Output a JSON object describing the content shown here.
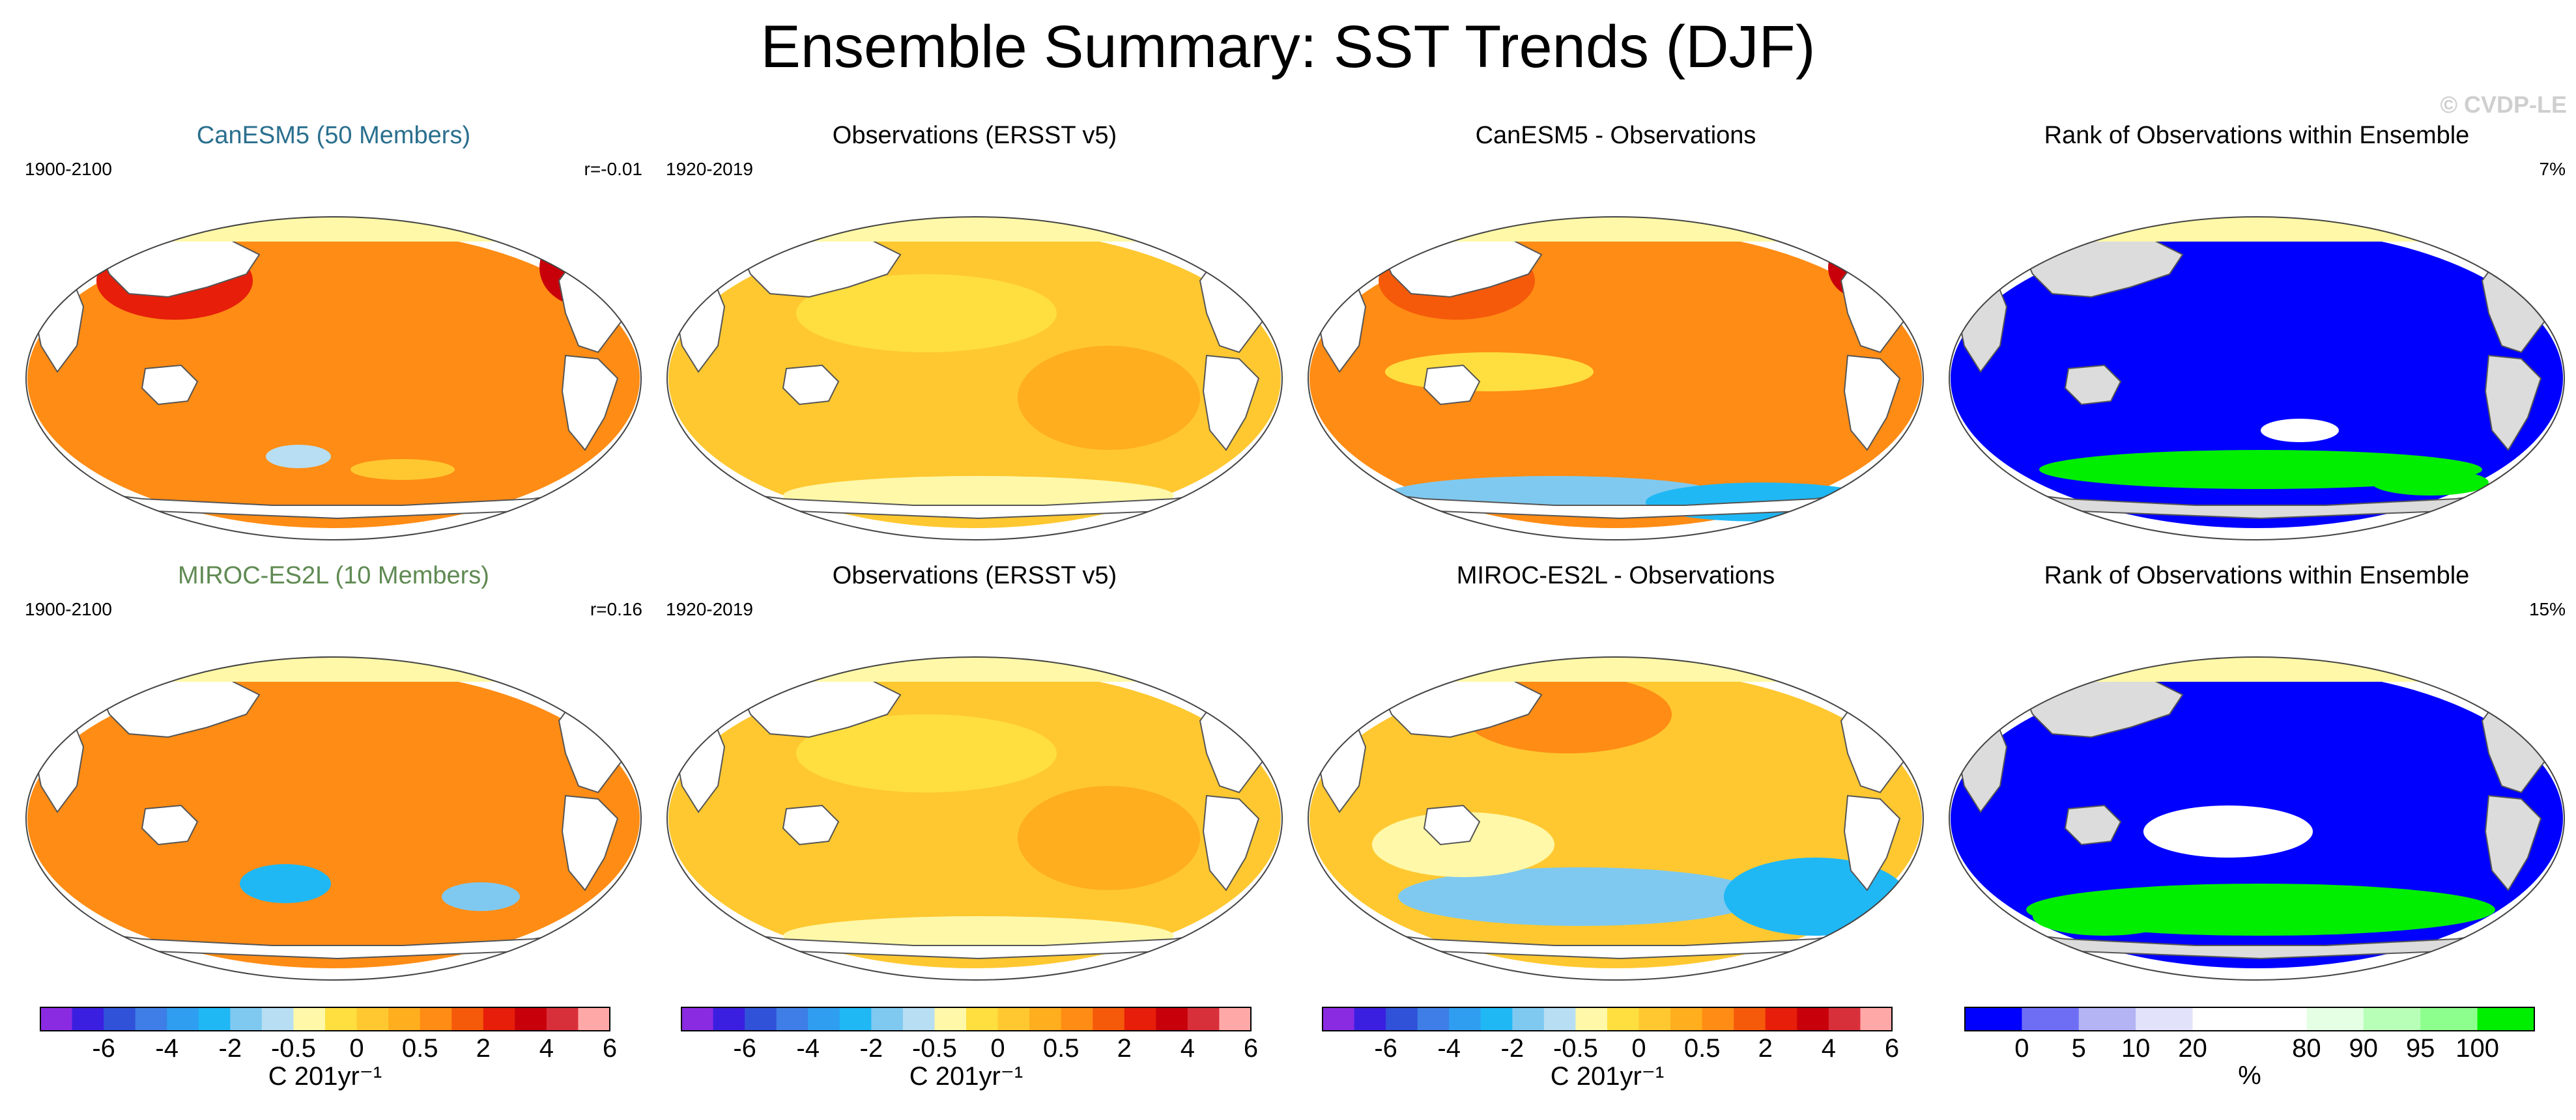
{
  "title": "Ensemble Summary: SST Trends (DJF)",
  "watermark": "© CVDP-LE",
  "panels": [
    {
      "id": "p1",
      "title": "CanESM5 (50 Members)",
      "left": "1900-2100",
      "right": "r=-0.01",
      "kind": "model_a",
      "title_style": "model1"
    },
    {
      "id": "p2",
      "title": "Observations (ERSST v5)",
      "left": "1920-2019",
      "right": "",
      "kind": "obs",
      "title_style": "plain"
    },
    {
      "id": "p3",
      "title": "CanESM5 - Observations",
      "left": "",
      "right": "",
      "kind": "diff_a",
      "title_style": "plain"
    },
    {
      "id": "p4",
      "title": "Rank of Observations within Ensemble",
      "left": "",
      "right": "7%",
      "kind": "rank_a",
      "title_style": "plain"
    },
    {
      "id": "p5",
      "title": "MIROC-ES2L (10 Members)",
      "left": "1900-2100",
      "right": "r=0.16",
      "kind": "model_b",
      "title_style": "model2"
    },
    {
      "id": "p6",
      "title": "Observations (ERSST v5)",
      "left": "1920-2019",
      "right": "",
      "kind": "obs",
      "title_style": "plain"
    },
    {
      "id": "p7",
      "title": "MIROC-ES2L - Observations",
      "left": "",
      "right": "",
      "kind": "diff_b",
      "title_style": "plain"
    },
    {
      "id": "p8",
      "title": "Rank of Observations within Ensemble",
      "left": "",
      "right": "15%",
      "kind": "rank_b",
      "title_style": "plain"
    }
  ],
  "colorbars": [
    {
      "kind": "trend",
      "unit": "C 201yr⁻¹",
      "labels": [
        "-6",
        "-4",
        "-2",
        "-0.5",
        "0",
        "0.5",
        "2",
        "4",
        "6"
      ]
    },
    {
      "kind": "trend",
      "unit": "C 201yr⁻¹",
      "labels": [
        "-6",
        "-4",
        "-2",
        "-0.5",
        "0",
        "0.5",
        "2",
        "4",
        "6"
      ]
    },
    {
      "kind": "trend",
      "unit": "C 201yr⁻¹",
      "labels": [
        "-6",
        "-4",
        "-2",
        "-0.5",
        "0",
        "0.5",
        "2",
        "4",
        "6"
      ]
    },
    {
      "kind": "rank",
      "unit": "%",
      "labels": [
        "0",
        "5",
        "10",
        "20",
        "80",
        "90",
        "95",
        "100"
      ]
    }
  ],
  "colors": {
    "trend": [
      "#8a2be2",
      "#3b1fe0",
      "#2f52d8",
      "#3e7ee6",
      "#2f9ef0",
      "#1fb8f5",
      "#7fc9f0",
      "#b7def2",
      "#fff8a8",
      "#ffde40",
      "#ffc830",
      "#ffae1e",
      "#ff8c14",
      "#f55a0a",
      "#e61e0a",
      "#c8000a",
      "#d8303a",
      "#ffa8a8"
    ],
    "rank": [
      "#0000ff",
      "#6e6ef5",
      "#b4b4f5",
      "#e2e2fa",
      "#ffffff",
      "#ffffff",
      "#e4ffe4",
      "#b8ffb8",
      "#8cff8c",
      "#00ee00"
    ],
    "land": "#ffffff",
    "rank_land": "#dcdcdc",
    "coast": "#555555"
  },
  "chart_data": {
    "type": "map-grid",
    "title": "Ensemble Summary: SST Trends (DJF)",
    "variable": "SST trend",
    "season": "DJF",
    "units": "C 201yr-1",
    "levels": [
      -6,
      -4,
      -2,
      -0.5,
      0,
      0.5,
      2,
      4,
      6
    ],
    "rank_levels_percent": [
      0,
      5,
      10,
      20,
      80,
      90,
      95,
      100
    ],
    "panels": [
      {
        "name": "CanESM5 (50 Members)",
        "period": "1900-2100",
        "pattern_correlation": -0.01,
        "dominant_value_range": [
          2,
          6
        ]
      },
      {
        "name": "Observations (ERSST v5)",
        "period": "1920-2019",
        "dominant_value_range": [
          0.5,
          2
        ]
      },
      {
        "name": "CanESM5 - Observations",
        "dominant_value_range": [
          0.5,
          4
        ]
      },
      {
        "name": "Rank of Observations within Ensemble",
        "percent_outside": 7
      },
      {
        "name": "MIROC-ES2L (10 Members)",
        "period": "1900-2100",
        "pattern_correlation": 0.16,
        "dominant_value_range": [
          2,
          4
        ]
      },
      {
        "name": "Observations (ERSST v5)",
        "period": "1920-2019",
        "dominant_value_range": [
          0.5,
          2
        ]
      },
      {
        "name": "MIROC-ES2L - Observations",
        "dominant_value_range": [
          -2,
          2
        ]
      },
      {
        "name": "Rank of Observations within Ensemble",
        "percent_outside": 15
      }
    ]
  }
}
